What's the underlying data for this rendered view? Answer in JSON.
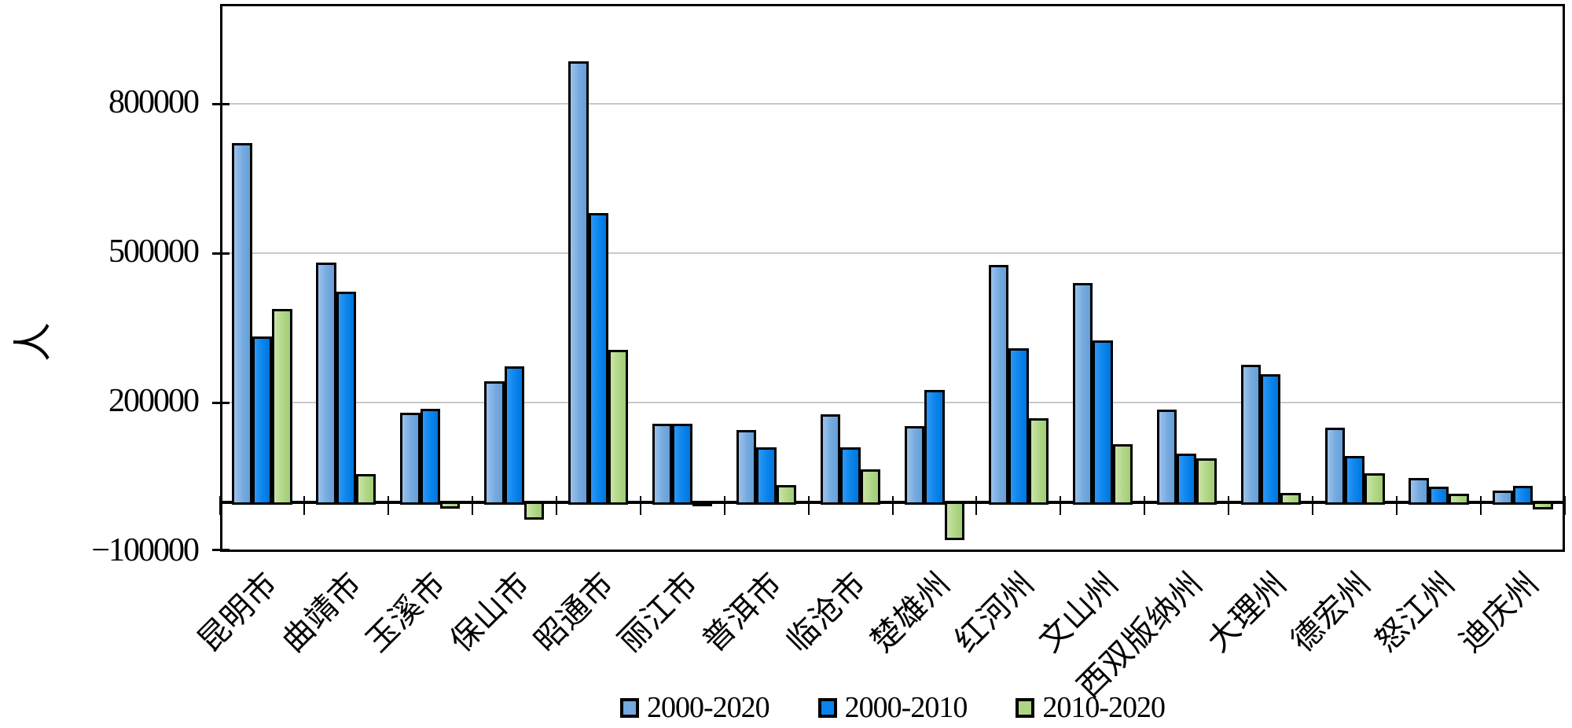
{
  "chart_data": {
    "type": "bar",
    "title": "",
    "xlabel": "",
    "ylabel": "人",
    "categories": [
      "昆明市",
      "曲靖市",
      "玉溪市",
      "保山市",
      "昭通市",
      "丽江市",
      "普洱市",
      "临沧市",
      "楚雄州",
      "红河州",
      "文山州",
      "西双版纳州",
      "大理州",
      "德宏州",
      "怒江州",
      "迪庆州"
    ],
    "series": [
      {
        "name": "2000-2020",
        "color": "#74AADF",
        "values": [
          720000,
          480000,
          179000,
          242000,
          885000,
          157000,
          144000,
          176000,
          153000,
          476000,
          440000,
          186000,
          275000,
          150000,
          48000,
          23000
        ]
      },
      {
        "name": "2000-2010",
        "color": "#0A84EC",
        "values": [
          333000,
          423000,
          187000,
          272000,
          580000,
          158000,
          110000,
          110000,
          225000,
          308000,
          324000,
          98000,
          257000,
          92000,
          31000,
          33000
        ]
      },
      {
        "name": "2010-2020",
        "color": "#AED584",
        "values": [
          387000,
          57000,
          -8000,
          -30000,
          305000,
          -1000,
          34000,
          66000,
          -72000,
          168000,
          116000,
          88000,
          18000,
          58000,
          17000,
          -10000
        ]
      }
    ],
    "yticks": [
      800000,
      500000,
      200000,
      -100000
    ],
    "ylim": [
      -100000,
      1000000
    ],
    "grid": "horizontal-gridlines-gray",
    "legend_position": "bottom-center",
    "bar_border_color": "#000000",
    "gridline_color": "#C9C9C9",
    "axis_color": "#000000"
  }
}
